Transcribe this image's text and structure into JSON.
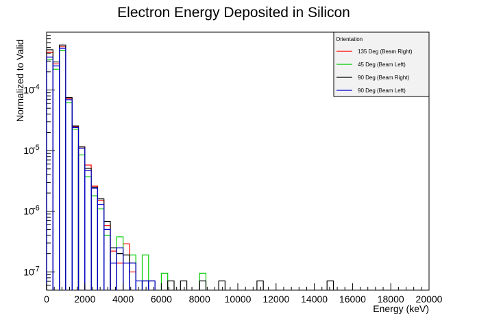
{
  "chart_data": {
    "type": "line",
    "title": "Electron Energy Deposited in Silicon",
    "xlabel": "Energy (keV)",
    "ylabel": "Normalized to Valid",
    "xlim": [
      0,
      20000
    ],
    "ylim": [
      5e-08,
      0.0009
    ],
    "yscale": "log",
    "bin_width": 333.33,
    "x_ticks": [
      0,
      2000,
      4000,
      6000,
      8000,
      10000,
      12000,
      14000,
      16000,
      18000,
      20000
    ],
    "x_tick_labels": [
      "0",
      "2000",
      "4000",
      "6000",
      "8000",
      "10000",
      "12000",
      "14000",
      "16000",
      "18000",
      "20000"
    ],
    "y_ticks": [
      1e-07,
      1e-06,
      1e-05,
      0.0001
    ],
    "y_tick_bases": [
      "10",
      "10",
      "10",
      "10"
    ],
    "y_tick_exps": [
      "-7",
      "-6",
      "-5",
      "-4"
    ],
    "legend": {
      "title": "Orientation",
      "placement": "top-right"
    },
    "series": [
      {
        "name": "135 Deg (Beam Right)",
        "color": "#ff0000",
        "values": [
          0.00042,
          0.00027,
          0.00052,
          7.2e-05,
          2.5e-05,
          1.15e-05,
          5.8e-06,
          2.6e-06,
          1.5e-06,
          5.8e-07,
          2.2e-07,
          1.4e-07,
          2.9e-07,
          1e-07,
          0,
          0,
          0,
          0,
          0,
          0,
          0,
          0,
          0,
          0,
          0,
          0,
          0,
          0,
          0,
          0,
          0,
          0,
          0,
          0,
          0,
          0,
          0,
          0,
          0,
          0,
          0,
          0,
          0,
          0,
          0,
          0,
          0,
          0,
          0,
          0,
          0,
          0,
          0,
          0,
          0,
          0,
          0,
          0,
          0,
          0
        ]
      },
      {
        "name": "45 Deg (Beam Left)",
        "color": "#00cc00",
        "values": [
          0.00032,
          0.00022,
          0.00045,
          6.2e-05,
          2.25e-05,
          8.5e-06,
          3.7e-06,
          1.8e-06,
          1.1e-06,
          4e-07,
          0,
          3.8e-07,
          0,
          1.9e-07,
          0,
          1.9e-07,
          0,
          0,
          9.5e-08,
          0,
          0,
          0,
          0,
          0,
          9.5e-08,
          0,
          0,
          0,
          0,
          0,
          0,
          0,
          0,
          0,
          0,
          0,
          0,
          0,
          0,
          0,
          0,
          0,
          0,
          0,
          0,
          0,
          0,
          0,
          0,
          0,
          0,
          0,
          0,
          0,
          0,
          0,
          0,
          0,
          0,
          0
        ]
      },
      {
        "name": "90 Deg (Beam Right)",
        "color": "#000000",
        "values": [
          0.00046,
          0.00029,
          0.00055,
          7.5e-05,
          2.55e-05,
          1.15e-05,
          5.1e-06,
          2.5e-06,
          1.6e-06,
          6.8e-07,
          2.5e-07,
          2e-07,
          1.9e-07,
          1.4e-07,
          0,
          7.1e-08,
          7.1e-08,
          0,
          0,
          7.1e-08,
          0,
          7.1e-08,
          0,
          0,
          7.1e-08,
          0,
          0,
          7.1e-08,
          0,
          0,
          0,
          0,
          0,
          7.1e-08,
          0,
          0,
          0,
          0,
          0,
          0,
          0,
          0,
          0,
          0,
          7.1e-08,
          0,
          0,
          0,
          0,
          0,
          0,
          0,
          0,
          0,
          0,
          0,
          0,
          0,
          0,
          0
        ]
      },
      {
        "name": "90 Deg (Beam Left)",
        "color": "#0000cc",
        "values": [
          0.00035,
          0.00025,
          0.00049,
          6.9e-05,
          2.4e-05,
          1.08e-05,
          4.7e-06,
          2.4e-06,
          1.3e-06,
          5e-07,
          1.4e-07,
          2.5e-07,
          1.4e-07,
          1.4e-07,
          7.1e-08,
          7.1e-08,
          7.1e-08,
          0,
          0,
          0,
          0,
          0,
          0,
          0,
          0,
          0,
          0,
          0,
          0,
          0,
          0,
          0,
          0,
          0,
          0,
          0,
          0,
          0,
          0,
          0,
          0,
          0,
          0,
          0,
          0,
          0,
          0,
          0,
          0,
          0,
          0,
          0,
          0,
          0,
          0,
          0,
          0,
          0,
          0,
          0
        ]
      }
    ]
  }
}
